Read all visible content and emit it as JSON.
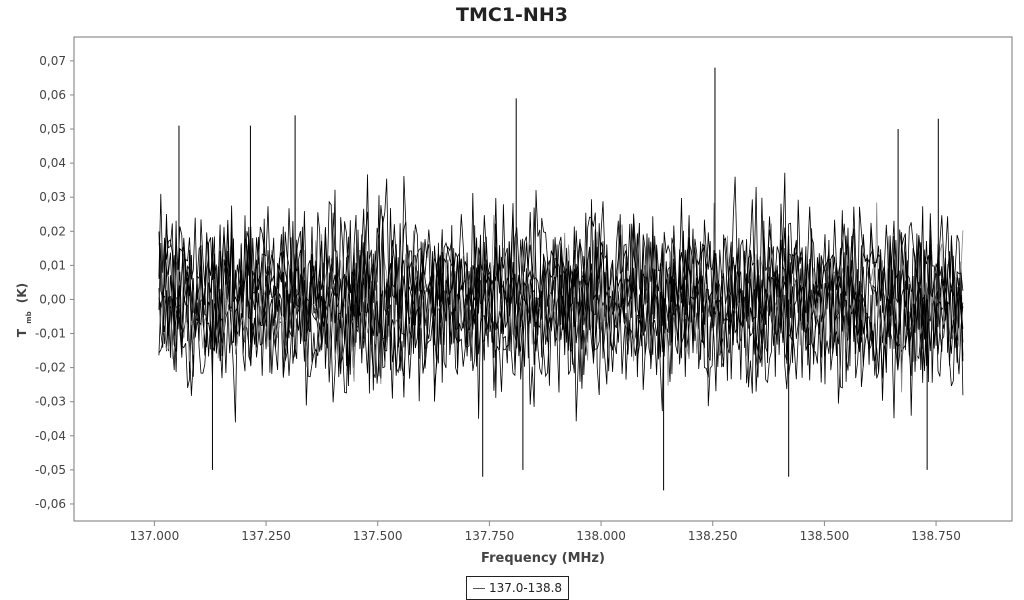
{
  "chart_data": {
    "type": "line",
    "title": "TMC1-NH3",
    "xlabel": "Frequency (MHz)",
    "ylabel": "T",
    "ylabel_sub": "mb",
    "ylabel_unit": "(K)",
    "xlim": [
      136.82,
      138.92
    ],
    "ylim": [
      -0.065,
      0.077
    ],
    "x_ticks": [
      137.0,
      137.25,
      137.5,
      137.75,
      138.0,
      138.25,
      138.5,
      138.75
    ],
    "x_tick_labels": [
      "137.000",
      "137.250",
      "137.500",
      "137.750",
      "138.000",
      "138.250",
      "138.500",
      "138.750"
    ],
    "y_ticks": [
      -0.06,
      -0.05,
      -0.04,
      -0.03,
      -0.02,
      -0.01,
      0.0,
      0.01,
      0.02,
      0.03,
      0.04,
      0.05,
      0.06,
      0.07
    ],
    "y_tick_labels": [
      "-0,06",
      "-0,05",
      "-0,04",
      "-0,03",
      "-0,02",
      "-0,01",
      "0,00",
      "0,01",
      "0,02",
      "0,03",
      "0,04",
      "0,05",
      "0,06",
      "0,07"
    ],
    "x_range": [
      137.01,
      138.81
    ],
    "series": [
      {
        "name": "137.0-138.8",
        "noise_level": 0.012,
        "min": -0.056,
        "max": 0.068
      }
    ],
    "peaks": [
      {
        "x": 138.255,
        "y": 0.068
      },
      {
        "x": 137.81,
        "y": 0.059
      },
      {
        "x": 137.055,
        "y": 0.051
      },
      {
        "x": 137.215,
        "y": 0.051
      },
      {
        "x": 137.315,
        "y": 0.054
      },
      {
        "x": 138.665,
        "y": 0.05
      },
      {
        "x": 138.755,
        "y": 0.053
      },
      {
        "x": 138.14,
        "y": -0.056
      },
      {
        "x": 137.13,
        "y": -0.05
      },
      {
        "x": 137.735,
        "y": -0.052
      },
      {
        "x": 138.42,
        "y": -0.052
      },
      {
        "x": 138.73,
        "y": -0.05
      },
      {
        "x": 137.825,
        "y": -0.05
      }
    ],
    "grid": false,
    "legend": "bottom-center",
    "colors": {
      "series": "#000000",
      "inner_trace": "#888888",
      "axis": "#888888",
      "frame": "#666666"
    }
  }
}
